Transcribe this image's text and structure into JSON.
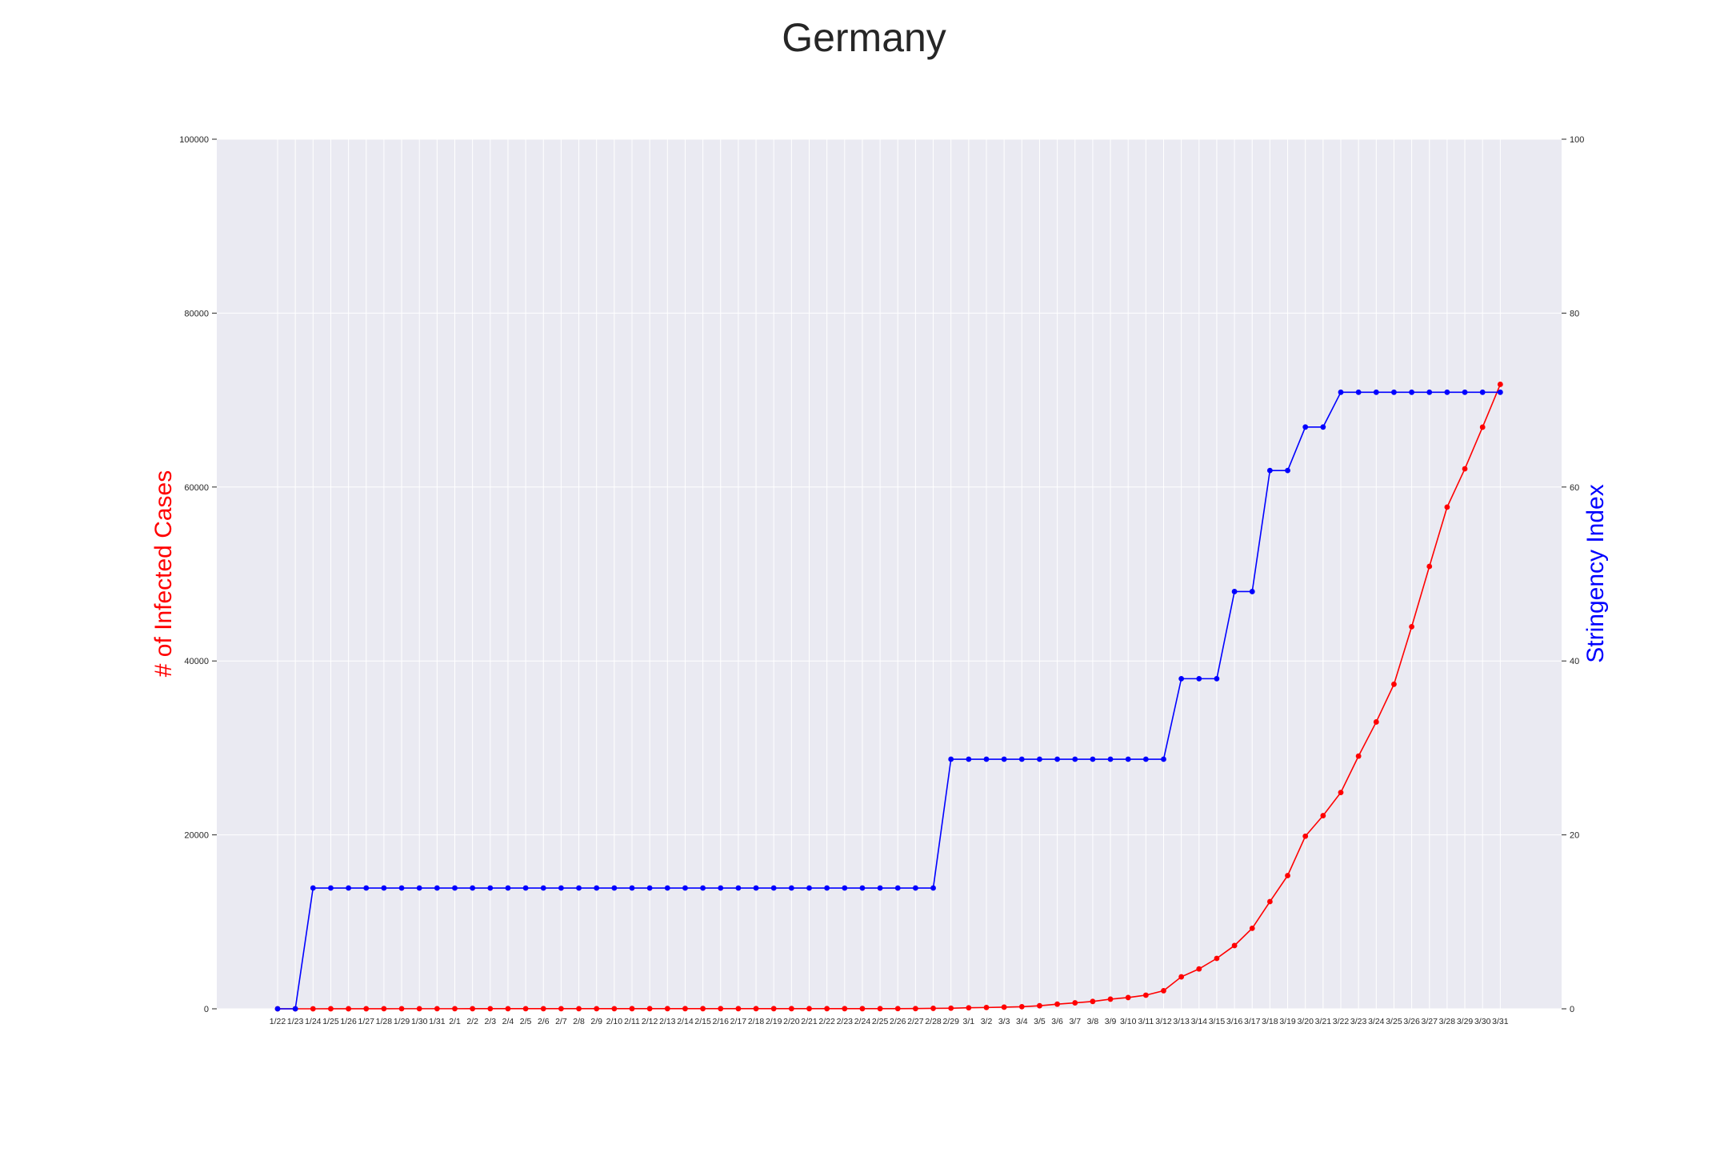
{
  "chart_data": {
    "type": "line",
    "title": "Germany",
    "ylabel": "# of Infected Cases",
    "ylabel_right": "Stringency Index",
    "ylabel_color": "#ff0000",
    "ylabel_right_color": "#0000ff",
    "ylim": [
      0,
      100000
    ],
    "ylim_right": [
      0,
      100
    ],
    "yticks": [
      "0",
      "20000",
      "40000",
      "60000",
      "80000",
      "100000"
    ],
    "yticks_right": [
      "0",
      "20",
      "40",
      "60",
      "80",
      "100"
    ],
    "grid": true,
    "background_color": "#eaeaf2",
    "categories": [
      "1/22",
      "1/23",
      "1/24",
      "1/25",
      "1/26",
      "1/27",
      "1/28",
      "1/29",
      "1/30",
      "1/31",
      "2/1",
      "2/2",
      "2/3",
      "2/4",
      "2/5",
      "2/6",
      "2/7",
      "2/8",
      "2/9",
      "2/10",
      "2/11",
      "2/12",
      "2/13",
      "2/14",
      "2/15",
      "2/16",
      "2/17",
      "2/18",
      "2/19",
      "2/20",
      "2/21",
      "2/22",
      "2/23",
      "2/24",
      "2/25",
      "2/26",
      "2/27",
      "2/28",
      "2/29",
      "3/1",
      "3/2",
      "3/3",
      "3/4",
      "3/5",
      "3/6",
      "3/7",
      "3/8",
      "3/9",
      "3/10",
      "3/11",
      "3/12",
      "3/13",
      "3/14",
      "3/15",
      "3/16",
      "3/17",
      "3/18",
      "3/19",
      "3/20",
      "3/21",
      "3/22",
      "3/23",
      "3/24",
      "3/25",
      "3/26",
      "3/27",
      "3/28",
      "3/29",
      "3/30",
      "3/31"
    ],
    "series": [
      {
        "axis": "left",
        "color": "#ff0000",
        "values": [
          0,
          0,
          0,
          4,
          5,
          8,
          10,
          12,
          12,
          12,
          12,
          13,
          13,
          13,
          13,
          14,
          14,
          14,
          14,
          14,
          16,
          16,
          16,
          16,
          16,
          16,
          16,
          16,
          16,
          16,
          16,
          16,
          16,
          16,
          16,
          21,
          26,
          53,
          66,
          117,
          150,
          188,
          240,
          349,
          534,
          684,
          847,
          1112,
          1296,
          1567,
          2078,
          3675,
          4585,
          5795,
          7272,
          9257,
          12327,
          15320,
          19848,
          22213,
          24873,
          29056,
          32986,
          37323,
          43938,
          50871,
          57695,
          62095,
          66885,
          71808
        ]
      },
      {
        "axis": "right",
        "color": "#0000ff",
        "values": [
          0,
          0,
          13.89,
          13.89,
          13.89,
          13.89,
          13.89,
          13.89,
          13.89,
          13.89,
          13.89,
          13.89,
          13.89,
          13.89,
          13.89,
          13.89,
          13.89,
          13.89,
          13.89,
          13.89,
          13.89,
          13.89,
          13.89,
          13.89,
          13.89,
          13.89,
          13.89,
          13.89,
          13.89,
          13.89,
          13.89,
          13.89,
          13.89,
          13.89,
          13.89,
          13.89,
          13.89,
          13.89,
          28.7,
          28.7,
          28.7,
          28.7,
          28.7,
          28.7,
          28.7,
          28.7,
          28.7,
          28.7,
          28.7,
          28.7,
          28.7,
          37.96,
          37.96,
          37.96,
          47.98,
          47.98,
          61.9,
          61.9,
          66.9,
          66.9,
          70.9,
          70.9,
          70.9,
          70.9,
          70.9,
          70.9,
          70.9,
          70.9,
          70.9,
          70.9
        ]
      }
    ]
  }
}
